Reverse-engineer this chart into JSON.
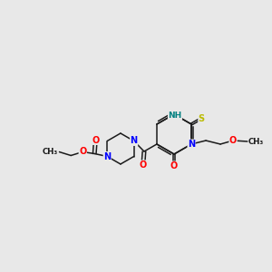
{
  "background_color": "#e8e8e8",
  "bond_color": "#1a1a1a",
  "figsize": [
    3.0,
    3.0
  ],
  "dpi": 100,
  "atom_colors": {
    "O": "#ff0000",
    "N": "#0000ff",
    "S": "#bbbb00",
    "NH": "#008080",
    "C": "#1a1a1a"
  },
  "font_size_atoms": 7.0,
  "font_size_small": 6.2,
  "lw": 1.1
}
